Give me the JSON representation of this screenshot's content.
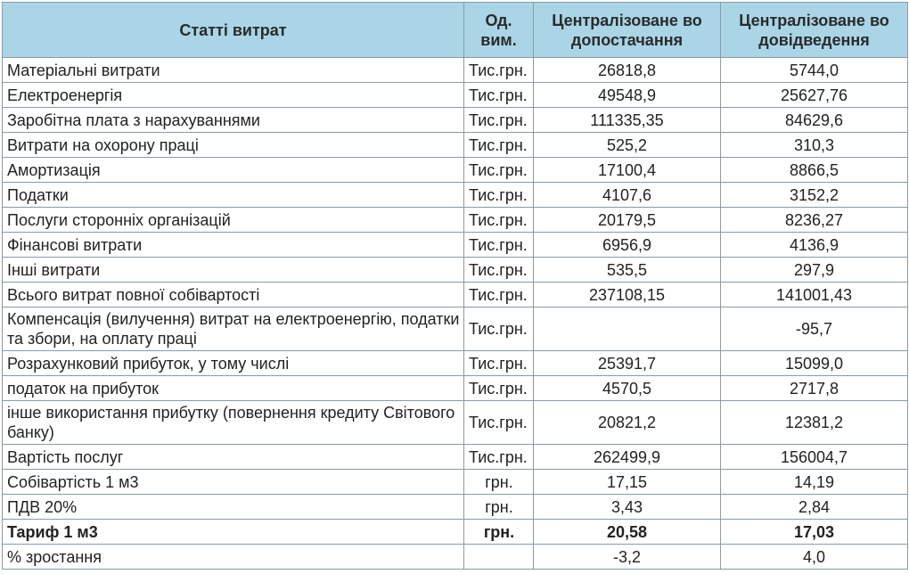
{
  "header": {
    "col_item": "Статті витрат",
    "col_unit": "Од. вим.",
    "col_supply": "Централізоване во допостачання",
    "col_drain": "Централізоване во довідведення"
  },
  "rows": [
    {
      "item": "Матеріальні витрати",
      "unit": "Тис.грн.",
      "supply": "26818,8",
      "drain": "5744,0"
    },
    {
      "item": "Електроенергія",
      "unit": "Тис.грн.",
      "supply": "49548,9",
      "drain": "25627,76"
    },
    {
      "item": "Заробітна плата з нарахуваннями",
      "unit": "Тис.грн.",
      "supply": "111335,35",
      "drain": "84629,6"
    },
    {
      "item": "Витрати на охорону праці",
      "unit": "Тис.грн.",
      "supply": "525,2",
      "drain": "310,3"
    },
    {
      "item": "Амортизація",
      "unit": "Тис.грн.",
      "supply": "17100,4",
      "drain": "8866,5"
    },
    {
      "item": "Податки",
      "unit": "Тис.грн.",
      "supply": "4107,6",
      "drain": "3152,2"
    },
    {
      "item": "Послуги сторонніх організацій",
      "unit": "Тис.грн.",
      "supply": "20179,5",
      "drain": "8236,27"
    },
    {
      "item": "Фінансові витрати",
      "unit": "Тис.грн.",
      "supply": "6956,9",
      "drain": "4136,9"
    },
    {
      "item": "Інші витрати",
      "unit": "Тис.грн.",
      "supply": "535,5",
      "drain": "297,9"
    },
    {
      "item": "Всього витрат повної собівартості",
      "unit": "Тис.грн.",
      "supply": "237108,15",
      "drain": "141001,43"
    },
    {
      "item": "Компенсація (вилучення) витрат на електроенергію, податки та збори, на оплату праці",
      "unit": "Тис.грн.",
      "supply": "",
      "drain": "-95,7"
    },
    {
      "item": "Розрахунковий прибуток, у тому числі",
      "unit": "Тис.грн.",
      "supply": "25391,7",
      "drain": "15099,0"
    },
    {
      "item": "податок на прибуток",
      "unit": "Тис.грн.",
      "supply": "4570,5",
      "drain": "2717,8"
    },
    {
      "item": "інше використання прибутку (повернення кредиту Світового банку)",
      "unit": "Тис.грн.",
      "supply": "20821,2",
      "drain": "12381,2"
    },
    {
      "item": "Вартість послуг",
      "unit": "Тис.грн.",
      "supply": "262499,9",
      "drain": "156004,7"
    },
    {
      "item": "Собівартість 1 м3",
      "unit": "грн.",
      "supply": "17,15",
      "drain": "14,19"
    },
    {
      "item": "ПДВ 20%",
      "unit": "грн.",
      "supply": "3,43",
      "drain": "2,84"
    },
    {
      "item": "Тариф 1 м3",
      "unit": "грн.",
      "supply": "20,58",
      "drain": "17,03"
    },
    {
      "item": "% зростання",
      "unit": "",
      "supply": "-3,2",
      "drain": "4,0"
    }
  ]
}
